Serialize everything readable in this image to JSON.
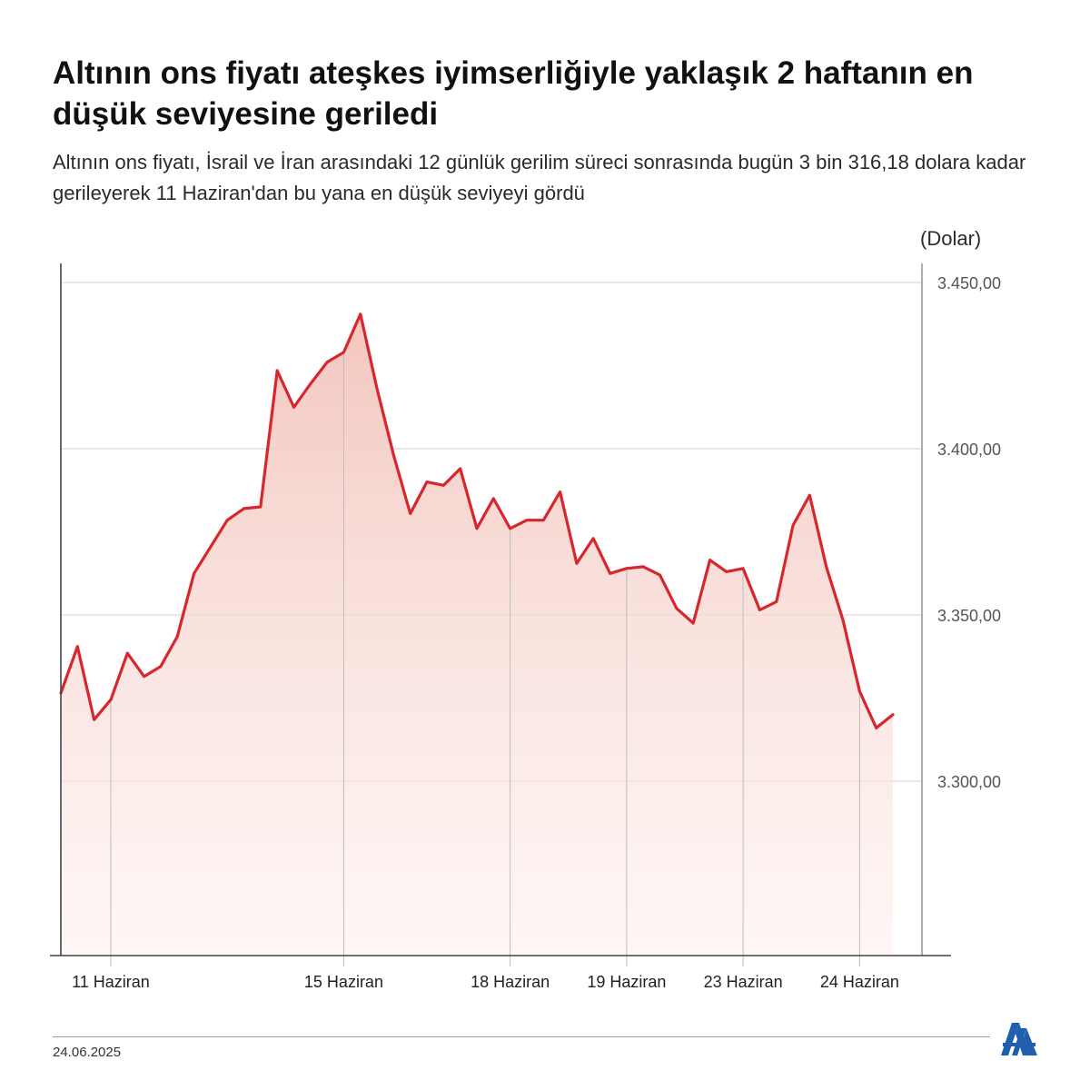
{
  "header": {
    "title": "Altının ons fiyatı ateşkes iyimserliğiyle yaklaşık 2 haftanın en düşük seviyesine geriledi",
    "subtitle": "Altının ons fiyatı, İsrail ve İran arasındaki 12 günlük gerilim süreci sonrasında bugün 3 bin 316,18 dolara kadar gerileyerek 11 Haziran'dan bu yana en düşük seviyeyi gördü"
  },
  "footer": {
    "date": "24.06.2025",
    "logo": "AA"
  },
  "chart_data": {
    "type": "area",
    "title": "Altının ons fiyatı ateşkes iyimserliğiyle yaklaşık 2 haftanın en düşük seviyesine geriledi",
    "unit_label": "(Dolar)",
    "ylim": [
      3250,
      3455
    ],
    "yticks": [
      3300,
      3350,
      3400,
      3450
    ],
    "ytick_labels": [
      "3.300,00",
      "3.350,00",
      "3.400,00",
      "3.450,00"
    ],
    "grid": true,
    "x_labels": [
      {
        "label": "11 Haziran",
        "index": 3
      },
      {
        "label": "15 Haziran",
        "index": 17
      },
      {
        "label": "18 Haziran",
        "index": 27
      },
      {
        "label": "19 Haziran",
        "index": 34
      },
      {
        "label": "23 Haziran",
        "index": 41
      },
      {
        "label": "24 Haziran",
        "index": 48
      }
    ],
    "colors": {
      "line": "#d7262d",
      "area_top": "#f3c7c0",
      "area_bottom": "#fdf1ee",
      "grid": "#d0d0d0",
      "axis": "#444444"
    },
    "values": [
      3326.5,
      3340.5,
      3318.5,
      3324.5,
      3338.5,
      3331.5,
      3334.5,
      3343.5,
      3362.5,
      3370.5,
      3378.5,
      3382.0,
      3382.5,
      3423.5,
      3412.5,
      3419.5,
      3426.0,
      3429.0,
      3440.5,
      3418.0,
      3398.0,
      3380.5,
      3390.0,
      3389.0,
      3394.0,
      3376.0,
      3385.0,
      3376.0,
      3378.5,
      3378.5,
      3387.0,
      3365.5,
      3373.0,
      3362.5,
      3364.0,
      3364.5,
      3362.0,
      3352.0,
      3347.5,
      3366.5,
      3363.0,
      3364.0,
      3351.5,
      3354.0,
      3377.0,
      3386.0,
      3364.5,
      3348.5,
      3327.0,
      3316.0,
      3320.0
    ]
  }
}
